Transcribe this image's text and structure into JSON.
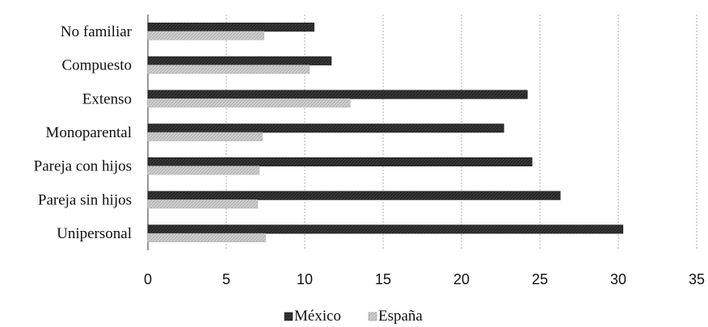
{
  "chart_data": {
    "type": "bar",
    "orientation": "horizontal",
    "categories": [
      "No familiar",
      "Compuesto",
      "Extenso",
      "Monoparental",
      "Pareja con hijos",
      "Pareja sin hijos",
      "Unipersonal"
    ],
    "series": [
      {
        "name": "México",
        "values": [
          10.6,
          11.7,
          24.2,
          22.7,
          24.5,
          26.3,
          30.3
        ],
        "color": "#262626"
      },
      {
        "name": "España",
        "values": [
          7.4,
          10.3,
          12.9,
          7.3,
          7.1,
          7.0,
          7.5
        ],
        "color": "#c8c8c8"
      }
    ],
    "xlim": [
      0,
      35
    ],
    "xticks": [
      "0",
      "5",
      "10",
      "15",
      "20",
      "25",
      "30",
      "35"
    ],
    "grid": true,
    "legend_position": "bottom"
  }
}
